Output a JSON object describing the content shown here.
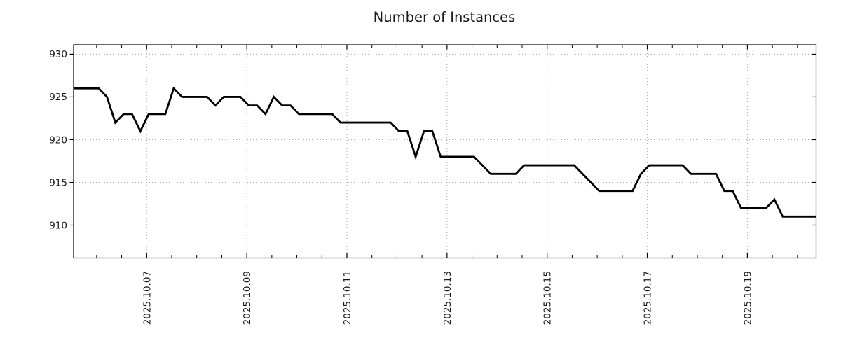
{
  "title": "Number of Instances",
  "colors": {
    "line": "#000000",
    "axis": "#000000",
    "grid": "#ababab",
    "text": "#1a1a1a",
    "background": "#ffffff"
  },
  "chart_data": {
    "type": "line",
    "title": "Number of Instances",
    "legend": false,
    "grid": true,
    "x_axis": {
      "tick_labels": [
        "2025.10.07",
        "2025.10.09",
        "2025.10.11",
        "2025.10.13",
        "2025.10.15",
        "2025.10.17",
        "2025.10.19"
      ],
      "first_major_tick_day": 1.46,
      "major_interval_days": 2,
      "minor_interval_days": 0.5,
      "total_days": 14.8333,
      "label_rotation_deg": 90
    },
    "y_axis": {
      "tick_labels": [
        "910",
        "915",
        "920",
        "925",
        "930"
      ],
      "ticks": [
        910,
        915,
        920,
        925,
        930
      ],
      "range": [
        906.15,
        931.1
      ]
    },
    "sampling": {
      "samples_per_day": 6,
      "interval_hours": 4
    },
    "series": [
      {
        "name": "Number of Instances",
        "color": "#000000",
        "values": [
          926,
          926,
          926,
          926,
          925,
          922,
          923,
          923,
          921,
          923,
          923,
          923,
          926,
          925,
          925,
          925,
          925,
          924,
          925,
          925,
          925,
          924,
          924,
          923,
          925,
          924,
          924,
          923,
          923,
          923,
          923,
          923,
          922,
          922,
          922,
          922,
          922,
          922,
          922,
          921,
          921,
          918,
          921,
          921,
          918,
          918,
          918,
          918,
          918,
          917,
          916,
          916,
          916,
          916,
          917,
          917,
          917,
          917,
          917,
          917,
          917,
          916,
          915,
          914,
          914,
          914,
          914,
          914,
          916,
          917,
          917,
          917,
          917,
          917,
          916,
          916,
          916,
          916,
          914,
          914,
          912,
          912,
          912,
          912,
          913,
          911,
          911,
          911,
          911,
          911
        ]
      }
    ]
  }
}
